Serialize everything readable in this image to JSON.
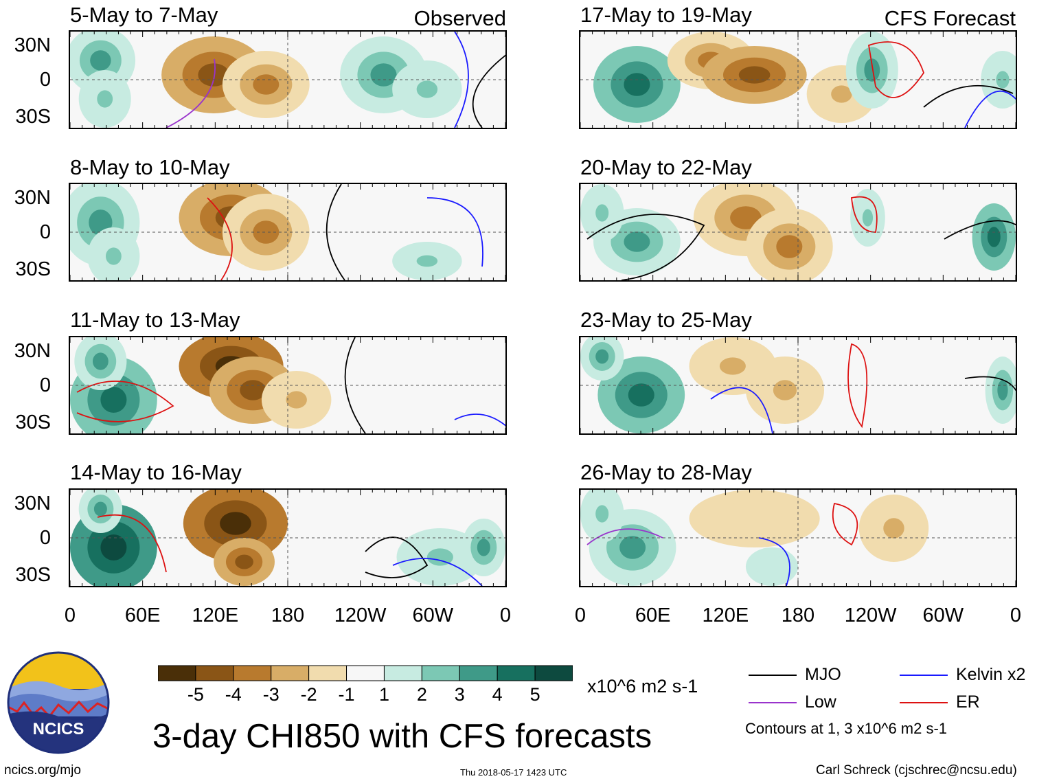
{
  "chart_data": {
    "type": "heatmap",
    "title": "3-day CHI850 with CFS forecasts",
    "units": "x10^6 m2 s-1",
    "colorbar": {
      "ticks": [
        "-5",
        "-4",
        "-3",
        "-2",
        "-1",
        "1",
        "2",
        "3",
        "4",
        "5"
      ],
      "colors": [
        "#4a2f08",
        "#8a5516",
        "#b87a2e",
        "#d8ad67",
        "#f1dcae",
        "#f7f7f7",
        "#c7ebe1",
        "#7cc8b4",
        "#3f9a88",
        "#17705f",
        "#0d4a3f"
      ]
    },
    "y_tick_labels": [
      "30N",
      "0",
      "30S"
    ],
    "x_tick_labels": [
      "0",
      "60E",
      "120E",
      "180",
      "120W",
      "60W",
      "0"
    ],
    "left_column_tag": "Observed",
    "right_column_tag": "CFS Forecast",
    "panels_observed": [
      {
        "title": "5-May to 7-May"
      },
      {
        "title": "8-May to 10-May"
      },
      {
        "title": "11-May to 13-May"
      },
      {
        "title": "14-May to 16-May"
      }
    ],
    "panels_forecast": [
      {
        "title": "17-May to 19-May"
      },
      {
        "title": "20-May to 22-May"
      },
      {
        "title": "23-May to 25-May"
      },
      {
        "title": "26-May to 28-May"
      }
    ],
    "legend": [
      {
        "label": "MJO",
        "color": "#000000"
      },
      {
        "label": "Kelvin x2",
        "color": "#1a1aff"
      },
      {
        "label": "Low",
        "color": "#9933cc"
      },
      {
        "label": "ER",
        "color": "#dd1111"
      }
    ],
    "contour_note": "Contours at 1, 3 x10^6 m2 s-1"
  },
  "logo": {
    "text": "NCICS"
  },
  "footer": {
    "url": "ncics.org/mjo",
    "timestamp": "Thu 2018-05-17 1423 UTC",
    "author": "Carl Schreck (cjschrec@ncsu.edu)"
  }
}
